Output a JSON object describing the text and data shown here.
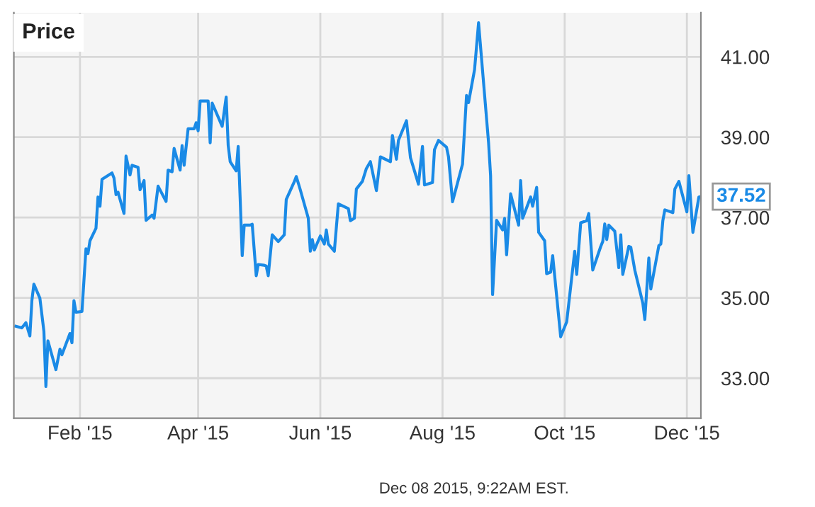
{
  "chart_data": {
    "type": "line",
    "title": "Price",
    "x": [
      "2014-12-31",
      "2015-01-03",
      "2015-01-05",
      "2015-01-07",
      "2015-01-08",
      "2015-01-09",
      "2015-01-12",
      "2015-01-14",
      "2015-01-15",
      "2015-01-16",
      "2015-01-20",
      "2015-01-22",
      "2015-01-23",
      "2015-01-27",
      "2015-01-28",
      "2015-01-29",
      "2015-01-30",
      "2015-02-02",
      "2015-02-04",
      "2015-02-05",
      "2015-02-06",
      "2015-02-09",
      "2015-02-10",
      "2015-02-11",
      "2015-02-12",
      "2015-02-17",
      "2015-02-18",
      "2015-02-19",
      "2015-02-20",
      "2015-02-23",
      "2015-02-24",
      "2015-02-26",
      "2015-02-27",
      "2015-03-02",
      "2015-03-03",
      "2015-03-05",
      "2015-03-06",
      "2015-03-09",
      "2015-03-10",
      "2015-03-12",
      "2015-03-16",
      "2015-03-17",
      "2015-03-19",
      "2015-03-20",
      "2015-03-23",
      "2015-03-24",
      "2015-03-25",
      "2015-03-27",
      "2015-03-30",
      "2015-03-31",
      "2015-04-01",
      "2015-04-02",
      "2015-04-06",
      "2015-04-07",
      "2015-04-08",
      "2015-04-13",
      "2015-04-15",
      "2015-04-16",
      "2015-04-17",
      "2015-04-20",
      "2015-04-21",
      "2015-04-22",
      "2015-04-23",
      "2015-04-24",
      "2015-04-27",
      "2015-04-28",
      "2015-04-30",
      "2015-05-01",
      "2015-05-04",
      "2015-05-05",
      "2015-05-06",
      "2015-05-08",
      "2015-05-11",
      "2015-05-14",
      "2015-05-15",
      "2015-05-19",
      "2015-05-20",
      "2015-05-22",
      "2015-05-26",
      "2015-05-27",
      "2015-05-28",
      "2015-05-29",
      "2015-06-01",
      "2015-06-03",
      "2015-06-04",
      "2015-06-05",
      "2015-06-08",
      "2015-06-10",
      "2015-06-15",
      "2015-06-16",
      "2015-06-18",
      "2015-06-19",
      "2015-06-22",
      "2015-06-24",
      "2015-06-26",
      "2015-06-29",
      "2015-07-01",
      "2015-07-06",
      "2015-07-07",
      "2015-07-09",
      "2015-07-10",
      "2015-07-14",
      "2015-07-16",
      "2015-07-20",
      "2015-07-22",
      "2015-07-23",
      "2015-07-27",
      "2015-07-28",
      "2015-07-30",
      "2015-08-03",
      "2015-08-04",
      "2015-08-06",
      "2015-08-11",
      "2015-08-13",
      "2015-08-14",
      "2015-08-17",
      "2015-08-19",
      "2015-08-24",
      "2015-08-25",
      "2015-08-26",
      "2015-08-28",
      "2015-08-31",
      "2015-09-01",
      "2015-09-02",
      "2015-09-04",
      "2015-09-08",
      "2015-09-09",
      "2015-09-10",
      "2015-09-14",
      "2015-09-15",
      "2015-09-17",
      "2015-09-18",
      "2015-09-21",
      "2015-09-22",
      "2015-09-24",
      "2015-09-25",
      "2015-09-29",
      "2015-10-02",
      "2015-10-06",
      "2015-10-07",
      "2015-10-09",
      "2015-10-12",
      "2015-10-13",
      "2015-10-15",
      "2015-10-19",
      "2015-10-20",
      "2015-10-21",
      "2015-10-22",
      "2015-10-23",
      "2015-10-26",
      "2015-10-28",
      "2015-10-29",
      "2015-10-30",
      "2015-11-02",
      "2015-11-03",
      "2015-11-05",
      "2015-11-09",
      "2015-11-10",
      "2015-11-12",
      "2015-11-13",
      "2015-11-17",
      "2015-11-18",
      "2015-11-19",
      "2015-11-20",
      "2015-11-24",
      "2015-11-25",
      "2015-11-27",
      "2015-12-01",
      "2015-12-02",
      "2015-12-04",
      "2015-12-07",
      "2015-12-08"
    ],
    "series": [
      {
        "color": "#1a8ae6",
        "values": [
          34.29,
          34.25,
          34.38,
          34.05,
          34.93,
          35.34,
          34.99,
          34.17,
          32.79,
          33.93,
          33.21,
          33.72,
          33.58,
          34.11,
          33.88,
          34.93,
          34.64,
          34.66,
          36.22,
          36.1,
          36.42,
          36.73,
          37.51,
          37.28,
          37.95,
          38.11,
          37.98,
          37.57,
          37.63,
          37.1,
          38.53,
          38.06,
          38.3,
          38.25,
          37.69,
          37.92,
          36.93,
          37.06,
          36.98,
          37.78,
          37.4,
          38.18,
          38.14,
          38.72,
          38.18,
          38.79,
          38.3,
          39.21,
          39.21,
          39.36,
          39.16,
          39.9,
          39.9,
          38.86,
          39.85,
          39.27,
          40.0,
          38.8,
          38.39,
          38.16,
          38.77,
          37.45,
          36.05,
          36.81,
          36.81,
          36.83,
          35.55,
          35.83,
          35.81,
          35.79,
          35.55,
          36.57,
          36.4,
          36.57,
          37.45,
          37.89,
          38.02,
          37.69,
          36.98,
          36.16,
          36.45,
          36.19,
          36.54,
          36.34,
          36.69,
          36.34,
          36.16,
          37.34,
          37.22,
          36.92,
          36.98,
          37.71,
          37.9,
          38.22,
          38.39,
          37.67,
          38.51,
          38.39,
          39.04,
          38.45,
          38.92,
          39.41,
          38.49,
          37.83,
          38.77,
          37.81,
          37.87,
          38.69,
          38.92,
          38.75,
          38.51,
          37.39,
          38.33,
          40.04,
          39.86,
          40.68,
          41.85,
          38.86,
          38.04,
          35.08,
          36.93,
          36.69,
          36.98,
          36.07,
          37.59,
          36.81,
          37.92,
          36.98,
          37.51,
          37.28,
          37.75,
          36.63,
          36.42,
          35.6,
          35.64,
          36.05,
          34.03,
          34.4,
          36.16,
          35.58,
          36.87,
          36.92,
          37.1,
          35.69,
          36.28,
          36.4,
          36.84,
          36.45,
          36.81,
          36.66,
          35.75,
          36.57,
          35.58,
          36.28,
          36.26,
          35.69,
          34.87,
          34.46,
          35.99,
          35.22,
          36.3,
          36.34,
          36.92,
          37.19,
          37.12,
          37.71,
          37.9,
          37.14,
          38.04,
          36.63,
          37.51,
          37.52
        ]
      }
    ],
    "xlim": [
      "2014-12-30",
      "2015-12-08"
    ],
    "xticks": [
      {
        "value": "2015-02-01",
        "label": "Feb '15"
      },
      {
        "value": "2015-04-01",
        "label": "Apr '15"
      },
      {
        "value": "2015-06-01",
        "label": "Jun '15"
      },
      {
        "value": "2015-08-01",
        "label": "Aug '15"
      },
      {
        "value": "2015-10-01",
        "label": "Oct '15"
      },
      {
        "value": "2015-12-01",
        "label": "Dec '15"
      }
    ],
    "ylim": [
      32.0,
      42.1
    ],
    "yticks": [
      {
        "value": 33,
        "label": "33.00"
      },
      {
        "value": 35,
        "label": "35.00"
      },
      {
        "value": 37,
        "label": "37.00"
      },
      {
        "value": 39,
        "label": "39.00"
      },
      {
        "value": 41,
        "label": "41.00"
      }
    ],
    "grid": true,
    "legend": false,
    "annotations": [
      {
        "text": "37.52",
        "x": "2015-12-08",
        "y": 37.52
      },
      "Dec 08 2015, 9:22AM EST."
    ]
  }
}
